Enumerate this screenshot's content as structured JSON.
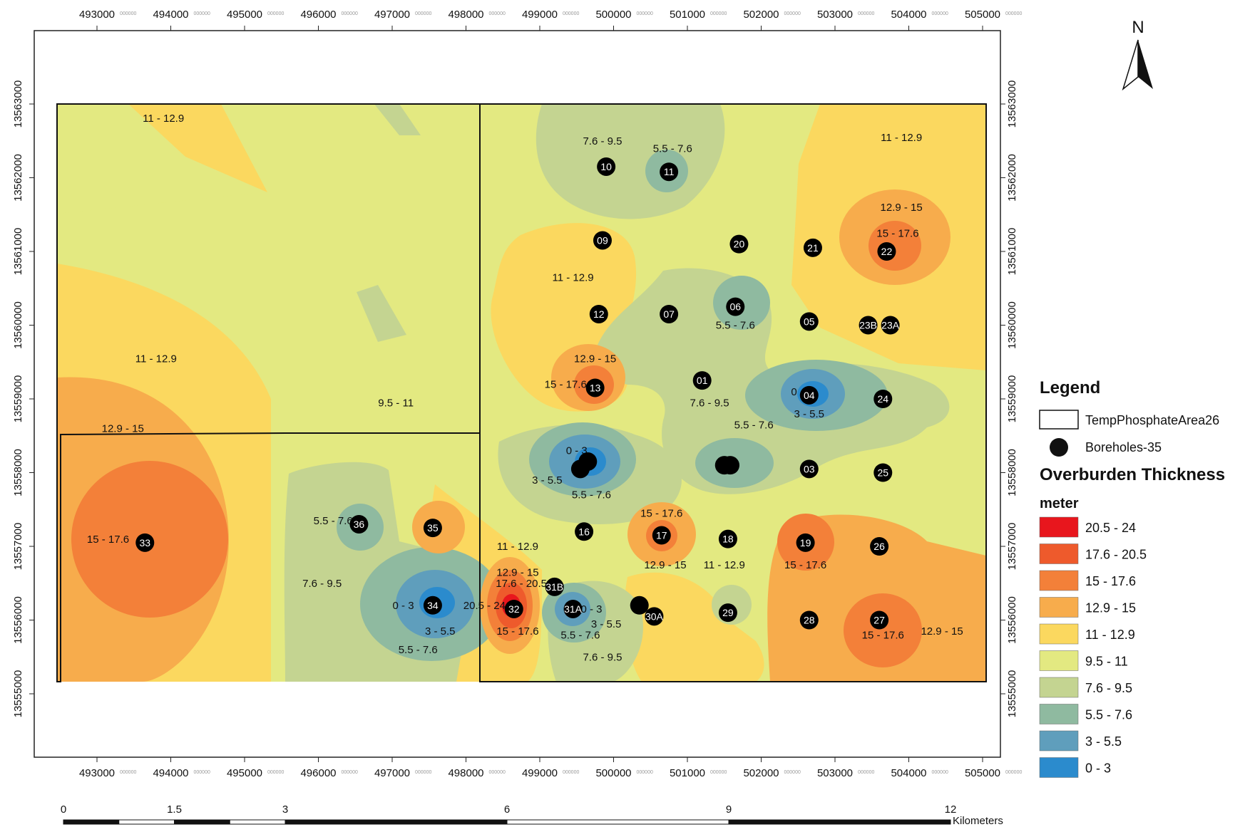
{
  "north_arrow": {
    "label": "N"
  },
  "legend": {
    "title": "Legend",
    "boundary_label": "TempPhosphateArea26",
    "boreholes_label": "Boreholes-35",
    "raster_title": "Overburden Thickness",
    "unit": "meter",
    "classes": [
      {
        "label": "20.5 - 24",
        "color": "#e8161d"
      },
      {
        "label": "17.6 - 20.5",
        "color": "#ee5a2c"
      },
      {
        "label": "15 - 17.6",
        "color": "#f38039"
      },
      {
        "label": "12.9 - 15",
        "color": "#f7ac4c"
      },
      {
        "label": "11 - 12.9",
        "color": "#fbd85f"
      },
      {
        "label": "9.5 - 11",
        "color": "#e3e981"
      },
      {
        "label": "7.6 - 9.5",
        "color": "#c4d491"
      },
      {
        "label": "5.5 - 7.6",
        "color": "#8fbaa0"
      },
      {
        "label": "3 - 5.5",
        "color": "#5f9ebc"
      },
      {
        "label": "0 - 3",
        "color": "#2b8bcd"
      }
    ]
  },
  "axes": {
    "x_ticks": [
      "493000",
      "494000",
      "495000",
      "496000",
      "497000",
      "498000",
      "499000",
      "500000",
      "501000",
      "502000",
      "503000",
      "504000",
      "505000"
    ],
    "y_ticks": [
      "13555000",
      "13556000",
      "13557000",
      "13558000",
      "13559000",
      "13560000",
      "13561000",
      "13562000",
      "13563000"
    ],
    "tick_suffix": "000000"
  },
  "scale_bar": {
    "ticks": [
      "0",
      "1.5",
      "3",
      "6",
      "9",
      "12"
    ],
    "unit": "Kilometers"
  },
  "boreholes": [
    {
      "id": "10",
      "x": 499900,
      "y": 13562150
    },
    {
      "id": "11",
      "x": 500750,
      "y": 13562080
    },
    {
      "id": "09",
      "x": 499850,
      "y": 13561150
    },
    {
      "id": "20",
      "x": 501700,
      "y": 13561100
    },
    {
      "id": "21",
      "x": 502700,
      "y": 13561050
    },
    {
      "id": "22",
      "x": 503700,
      "y": 13561000
    },
    {
      "id": "12",
      "x": 499800,
      "y": 13560150
    },
    {
      "id": "07",
      "x": 500750,
      "y": 13560150
    },
    {
      "id": "06",
      "x": 501650,
      "y": 13560250
    },
    {
      "id": "05",
      "x": 502650,
      "y": 13560050
    },
    {
      "id": "23B",
      "x": 503450,
      "y": 13560000
    },
    {
      "id": "23A",
      "x": 503750,
      "y": 13560000
    },
    {
      "id": "13",
      "x": 499750,
      "y": 13559150
    },
    {
      "id": "01",
      "x": 501200,
      "y": 13559250
    },
    {
      "id": "04",
      "x": 502650,
      "y": 13559050
    },
    {
      "id": "24",
      "x": 503650,
      "y": 13559000
    },
    {
      "id": "",
      "x": 499650,
      "y": 13558150
    },
    {
      "id": "",
      "x": 499550,
      "y": 13558050
    },
    {
      "id": "",
      "x": 501500,
      "y": 13558100
    },
    {
      "id": "",
      "x": 501580,
      "y": 13558100
    },
    {
      "id": "03",
      "x": 502650,
      "y": 13558050
    },
    {
      "id": "25",
      "x": 503650,
      "y": 13558000
    },
    {
      "id": "36",
      "x": 496550,
      "y": 13557300
    },
    {
      "id": "35",
      "x": 497550,
      "y": 13557250
    },
    {
      "id": "16",
      "x": 499600,
      "y": 13557200
    },
    {
      "id": "17",
      "x": 500650,
      "y": 13557150
    },
    {
      "id": "18",
      "x": 501550,
      "y": 13557100
    },
    {
      "id": "19",
      "x": 502600,
      "y": 13557050
    },
    {
      "id": "26",
      "x": 503600,
      "y": 13557000
    },
    {
      "id": "33",
      "x": 493650,
      "y": 13557050
    },
    {
      "id": "31B",
      "x": 499200,
      "y": 13556450
    },
    {
      "id": "34",
      "x": 497550,
      "y": 13556200
    },
    {
      "id": "32",
      "x": 498650,
      "y": 13556150
    },
    {
      "id": "31A",
      "x": 499450,
      "y": 13556150
    },
    {
      "id": "",
      "x": 500350,
      "y": 13556200
    },
    {
      "id": "30A",
      "x": 500550,
      "y": 13556050
    },
    {
      "id": "29",
      "x": 501550,
      "y": 13556100
    },
    {
      "id": "28",
      "x": 502650,
      "y": 13556000
    },
    {
      "id": "27",
      "x": 503600,
      "y": 13556000
    }
  ],
  "contour_labels": [
    {
      "text": "11 - 12.9",
      "x": 493900,
      "y": 13562760
    },
    {
      "text": "11 - 12.9",
      "x": 493800,
      "y": 13559500
    },
    {
      "text": "9.5 - 11",
      "x": 497050,
      "y": 13558900
    },
    {
      "text": "12.9 - 15",
      "x": 493350,
      "y": 13558550
    },
    {
      "text": "15 - 17.6",
      "x": 493150,
      "y": 13557050
    },
    {
      "text": "7.6 - 9.5",
      "x": 499850,
      "y": 13562450
    },
    {
      "text": "5.5 - 7.6",
      "x": 500800,
      "y": 13562350
    },
    {
      "text": "11 - 12.9",
      "x": 503900,
      "y": 13562500
    },
    {
      "text": "12.9 - 15",
      "x": 503900,
      "y": 13561550
    },
    {
      "text": "15 - 17.6",
      "x": 503850,
      "y": 13561200
    },
    {
      "text": "11 - 12.9",
      "x": 499450,
      "y": 13560600
    },
    {
      "text": "5.5 - 7.6",
      "x": 501650,
      "y": 13559950
    },
    {
      "text": "12.9 - 15",
      "x": 499750,
      "y": 13559500
    },
    {
      "text": "15 - 17.6",
      "x": 499350,
      "y": 13559150
    },
    {
      "text": "7.6 - 9.5",
      "x": 501300,
      "y": 13558900
    },
    {
      "text": "0 - 3",
      "x": 502550,
      "y": 13559050
    },
    {
      "text": "3 - 5.5",
      "x": 502650,
      "y": 13558750
    },
    {
      "text": "5.5 - 7.6",
      "x": 501900,
      "y": 13558600
    },
    {
      "text": "0 - 3",
      "x": 499500,
      "y": 13558250
    },
    {
      "text": "3 - 5.5",
      "x": 499100,
      "y": 13557850
    },
    {
      "text": "5.5 - 7.6",
      "x": 499700,
      "y": 13557650
    },
    {
      "text": "15 - 17.6",
      "x": 500650,
      "y": 13557400
    },
    {
      "text": "5.5 - 7.6",
      "x": 496200,
      "y": 13557300
    },
    {
      "text": "11 - 12.9",
      "x": 498700,
      "y": 13556950
    },
    {
      "text": "12.9 - 15",
      "x": 500700,
      "y": 13556700
    },
    {
      "text": "11 - 12.9",
      "x": 501500,
      "y": 13556700
    },
    {
      "text": "15 - 17.6",
      "x": 502600,
      "y": 13556700
    },
    {
      "text": "12.9 - 15",
      "x": 498700,
      "y": 13556600
    },
    {
      "text": "17.6 - 20.5",
      "x": 498750,
      "y": 13556450
    },
    {
      "text": "7.6 - 9.5",
      "x": 496050,
      "y": 13556450
    },
    {
      "text": "20.5 - 24",
      "x": 498250,
      "y": 13556150
    },
    {
      "text": "0 - 3",
      "x": 497150,
      "y": 13556150
    },
    {
      "text": "0 - 3",
      "x": 499700,
      "y": 13556100
    },
    {
      "text": "3 - 5.5",
      "x": 499900,
      "y": 13555900
    },
    {
      "text": "3 - 5.5",
      "x": 497650,
      "y": 13555800
    },
    {
      "text": "15 - 17.6",
      "x": 498700,
      "y": 13555800
    },
    {
      "text": "5.5 - 7.6",
      "x": 499550,
      "y": 13555750
    },
    {
      "text": "15 - 17.6",
      "x": 503650,
      "y": 13555750
    },
    {
      "text": "12.9 - 15",
      "x": 504450,
      "y": 13555800
    },
    {
      "text": "5.5 - 7.6",
      "x": 497350,
      "y": 13555550
    },
    {
      "text": "7.6 - 9.5",
      "x": 499850,
      "y": 13555450
    }
  ]
}
